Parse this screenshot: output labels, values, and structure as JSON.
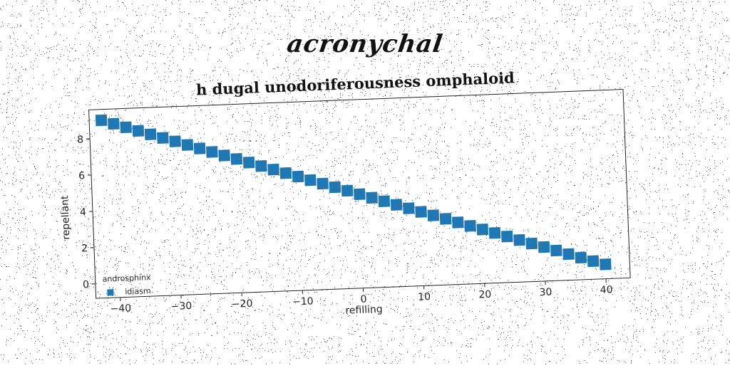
{
  "suptitle": "acronychal",
  "chart_data": {
    "type": "scatter",
    "title": "h dugal unodoriferousness omphaloid",
    "xlabel": "refilling",
    "ylabel": "repellant",
    "xlim": [
      -44,
      44
    ],
    "ylim": [
      -0.8,
      9.6
    ],
    "xticks": [
      -40,
      -30,
      -20,
      -10,
      0,
      10,
      20,
      30,
      40
    ],
    "yticks": [
      0,
      2,
      4,
      6,
      8
    ],
    "legend": {
      "title": "androsphinx",
      "placement": "lower-left"
    },
    "grid": false,
    "marker": "square",
    "series": [
      {
        "name": "idiasm",
        "color": "#1f77b4",
        "x": [
          -42,
          -40,
          -38,
          -36,
          -34,
          -32,
          -30,
          -28,
          -26,
          -24,
          -22,
          -20,
          -18,
          -16,
          -14,
          -12,
          -10,
          -8,
          -6,
          -4,
          -2,
          0,
          2,
          4,
          6,
          8,
          10,
          12,
          14,
          16,
          18,
          20,
          22,
          24,
          26,
          28,
          30,
          32,
          34,
          36,
          38,
          40
        ],
        "y": [
          9.0,
          8.78,
          8.56,
          8.34,
          8.12,
          7.9,
          7.68,
          7.46,
          7.24,
          7.02,
          6.8,
          6.58,
          6.36,
          6.14,
          5.92,
          5.7,
          5.48,
          5.26,
          5.04,
          4.82,
          4.6,
          4.38,
          4.16,
          3.94,
          3.72,
          3.5,
          3.28,
          3.06,
          2.84,
          2.62,
          2.4,
          2.18,
          1.96,
          1.74,
          1.52,
          1.3,
          1.08,
          0.86,
          0.64,
          0.42,
          0.2,
          0.0
        ]
      }
    ]
  }
}
